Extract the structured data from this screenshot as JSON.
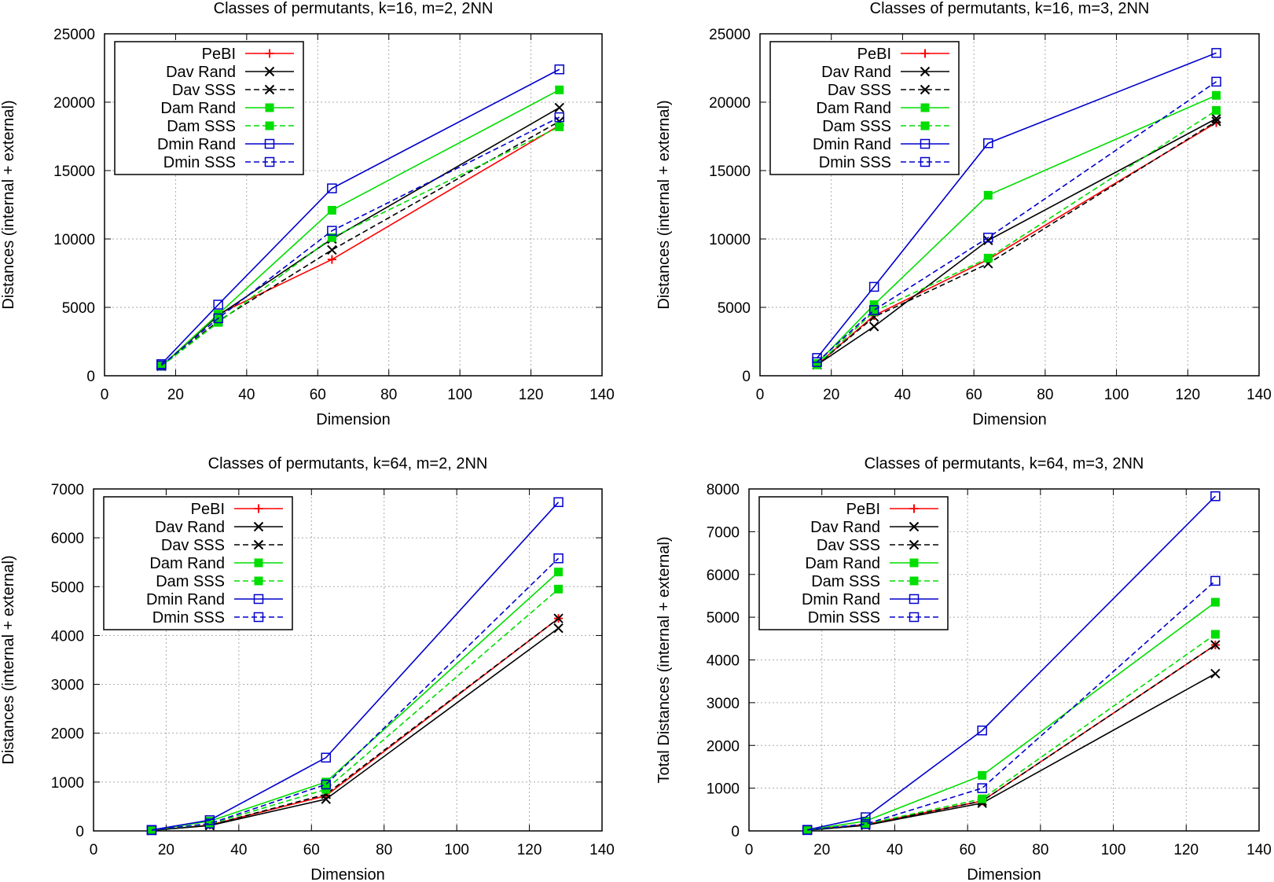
{
  "chart_data": [
    {
      "type": "line",
      "title": "Classes of permutants, k=16, m=2, 2NN",
      "xlabel": "Dimension",
      "ylabel": "Distances (internal + external)",
      "xlim": [
        0,
        140
      ],
      "ylim": [
        0,
        25000
      ],
      "xticks": [
        0,
        20,
        40,
        60,
        80,
        100,
        120,
        140
      ],
      "yticks": [
        0,
        5000,
        10000,
        15000,
        20000,
        25000
      ],
      "grid": true,
      "legend_position": "top-left",
      "x": [
        16,
        32,
        64,
        128
      ],
      "series": [
        {
          "name": "PeBI",
          "values": [
            700,
            4500,
            8500,
            18300
          ],
          "color": "#ff0000",
          "dash": "solid",
          "marker": "plus"
        },
        {
          "name": "Dav Rand",
          "values": [
            700,
            4400,
            10000,
            19600
          ],
          "color": "#000000",
          "dash": "solid",
          "marker": "cross"
        },
        {
          "name": "Dav SSS",
          "values": [
            700,
            4000,
            9200,
            18600
          ],
          "color": "#000000",
          "dash": "dashed",
          "marker": "cross"
        },
        {
          "name": "Dam Rand",
          "values": [
            700,
            4500,
            12100,
            20900
          ],
          "color": "#00dd00",
          "dash": "solid",
          "marker": "filled-square"
        },
        {
          "name": "Dam SSS",
          "values": [
            700,
            3900,
            10100,
            18200
          ],
          "color": "#00dd00",
          "dash": "dashed",
          "marker": "filled-square"
        },
        {
          "name": "Dmin Rand",
          "values": [
            850,
            5200,
            13700,
            22400
          ],
          "color": "#0000cc",
          "dash": "solid",
          "marker": "open-square"
        },
        {
          "name": "Dmin SSS",
          "values": [
            750,
            4200,
            10600,
            18900
          ],
          "color": "#0000cc",
          "dash": "dashed",
          "marker": "open-square"
        }
      ]
    },
    {
      "type": "line",
      "title": "Classes of permutants, k=16, m=3, 2NN",
      "xlabel": "Dimension",
      "ylabel": "Distances (internal + external)",
      "xlim": [
        0,
        140
      ],
      "ylim": [
        0,
        25000
      ],
      "xticks": [
        0,
        20,
        40,
        60,
        80,
        100,
        120,
        140
      ],
      "yticks": [
        0,
        5000,
        10000,
        15000,
        20000,
        25000
      ],
      "grid": true,
      "legend_position": "top-left",
      "x": [
        16,
        32,
        64,
        128
      ],
      "series": [
        {
          "name": "PeBI",
          "values": [
            800,
            4400,
            8500,
            18500
          ],
          "color": "#ff0000",
          "dash": "solid",
          "marker": "plus"
        },
        {
          "name": "Dav Rand",
          "values": [
            800,
            3600,
            9900,
            18800
          ],
          "color": "#000000",
          "dash": "solid",
          "marker": "cross"
        },
        {
          "name": "Dav SSS",
          "values": [
            800,
            4300,
            8200,
            18600
          ],
          "color": "#000000",
          "dash": "dashed",
          "marker": "cross"
        },
        {
          "name": "Dam Rand",
          "values": [
            900,
            5200,
            13200,
            20500
          ],
          "color": "#00dd00",
          "dash": "solid",
          "marker": "filled-square"
        },
        {
          "name": "Dam SSS",
          "values": [
            800,
            4700,
            8600,
            19400
          ],
          "color": "#00dd00",
          "dash": "dashed",
          "marker": "filled-square"
        },
        {
          "name": "Dmin Rand",
          "values": [
            1300,
            6500,
            17000,
            23600
          ],
          "color": "#0000cc",
          "dash": "solid",
          "marker": "open-square"
        },
        {
          "name": "Dmin SSS",
          "values": [
            1000,
            4800,
            10100,
            21500
          ],
          "color": "#0000cc",
          "dash": "dashed",
          "marker": "open-square"
        }
      ]
    },
    {
      "type": "line",
      "title": "Classes of permutants, k=64, m=2, 2NN",
      "xlabel": "Dimension",
      "ylabel": "Distances (internal + external)",
      "xlim": [
        0,
        140
      ],
      "ylim": [
        0,
        7000
      ],
      "xticks": [
        0,
        20,
        40,
        60,
        80,
        100,
        120,
        140
      ],
      "yticks": [
        0,
        1000,
        2000,
        3000,
        4000,
        5000,
        6000,
        7000
      ],
      "grid": true,
      "legend_position": "top-left",
      "x": [
        16,
        32,
        64,
        128
      ],
      "series": [
        {
          "name": "PeBI",
          "values": [
            10,
            120,
            720,
            4350
          ],
          "color": "#ff0000",
          "dash": "solid",
          "marker": "plus"
        },
        {
          "name": "Dav Rand",
          "values": [
            10,
            110,
            650,
            4150
          ],
          "color": "#000000",
          "dash": "solid",
          "marker": "cross"
        },
        {
          "name": "Dav SSS",
          "values": [
            10,
            115,
            750,
            4350
          ],
          "color": "#000000",
          "dash": "dashed",
          "marker": "cross"
        },
        {
          "name": "Dam Rand",
          "values": [
            15,
            200,
            1000,
            5300
          ],
          "color": "#00dd00",
          "dash": "solid",
          "marker": "filled-square"
        },
        {
          "name": "Dam SSS",
          "values": [
            12,
            140,
            850,
            4950
          ],
          "color": "#00dd00",
          "dash": "dashed",
          "marker": "filled-square"
        },
        {
          "name": "Dmin Rand",
          "values": [
            20,
            220,
            1500,
            6730
          ],
          "color": "#0000cc",
          "dash": "solid",
          "marker": "open-square"
        },
        {
          "name": "Dmin SSS",
          "values": [
            15,
            150,
            950,
            5580
          ],
          "color": "#0000cc",
          "dash": "dashed",
          "marker": "open-square"
        }
      ]
    },
    {
      "type": "line",
      "title": "Classes of permutants, k=64, m=3, 2NN",
      "xlabel": "Dimension",
      "ylabel": "Total Distances (internal + external)",
      "xlim": [
        0,
        140
      ],
      "ylim": [
        0,
        8000
      ],
      "xticks": [
        0,
        20,
        40,
        60,
        80,
        100,
        120,
        140
      ],
      "yticks": [
        0,
        1000,
        2000,
        3000,
        4000,
        5000,
        6000,
        7000,
        8000
      ],
      "grid": true,
      "legend_position": "top-left",
      "x": [
        16,
        32,
        64,
        128
      ],
      "series": [
        {
          "name": "PeBI",
          "values": [
            15,
            150,
            700,
            4350
          ],
          "color": "#ff0000",
          "dash": "solid",
          "marker": "plus"
        },
        {
          "name": "Dav Rand",
          "values": [
            15,
            130,
            650,
            3680
          ],
          "color": "#000000",
          "dash": "solid",
          "marker": "cross"
        },
        {
          "name": "Dav SSS",
          "values": [
            15,
            140,
            700,
            4350
          ],
          "color": "#000000",
          "dash": "dashed",
          "marker": "cross"
        },
        {
          "name": "Dam Rand",
          "values": [
            20,
            230,
            1300,
            5350
          ],
          "color": "#00dd00",
          "dash": "solid",
          "marker": "filled-square"
        },
        {
          "name": "Dam SSS",
          "values": [
            15,
            160,
            750,
            4600
          ],
          "color": "#00dd00",
          "dash": "dashed",
          "marker": "filled-square"
        },
        {
          "name": "Dmin Rand",
          "values": [
            25,
            320,
            2350,
            7830
          ],
          "color": "#0000cc",
          "dash": "solid",
          "marker": "open-square"
        },
        {
          "name": "Dmin SSS",
          "values": [
            20,
            160,
            1000,
            5850
          ],
          "color": "#0000cc",
          "dash": "dashed",
          "marker": "open-square"
        }
      ]
    }
  ]
}
